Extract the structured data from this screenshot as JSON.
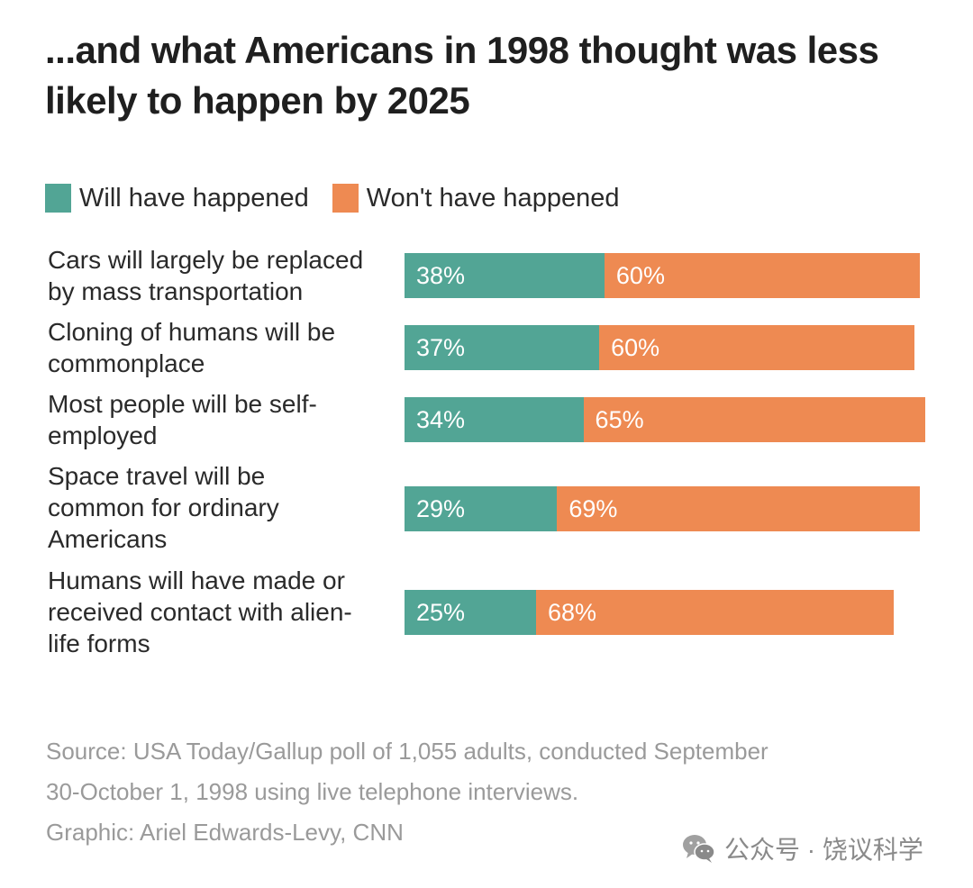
{
  "chart_data": {
    "type": "bar",
    "orientation": "horizontal",
    "stacked": true,
    "title": "...and what Americans in 1998 thought was less likely to happen by 2025",
    "xlabel": "",
    "ylabel": "",
    "xlim": [
      0,
      100
    ],
    "grid": false,
    "legend_position": "top-left",
    "categories": [
      "Cars will largely be replaced by mass transportation",
      "Cloning of humans will be commonplace",
      "Most people will be self-employed",
      "Space travel will be common for ordinary Americans",
      "Humans will have made or received contact with alien-life forms"
    ],
    "category_lines": [
      [
        "Cars will largely be replaced",
        "by mass transportation"
      ],
      [
        "Cloning of humans will be",
        "commonplace"
      ],
      [
        "Most people will be self-",
        "employed"
      ],
      [
        "Space travel will be",
        "common for ordinary",
        "Americans"
      ],
      [
        "Humans will have made or",
        "received contact with alien-",
        "life forms"
      ]
    ],
    "series": [
      {
        "name": "Will have happened",
        "color": "#52a595",
        "values": [
          38,
          37,
          34,
          29,
          25
        ],
        "labels": [
          "38%",
          "37%",
          "34%",
          "29%",
          "25%"
        ]
      },
      {
        "name": "Won't have happened",
        "color": "#ee8a52",
        "values": [
          60,
          60,
          65,
          69,
          68
        ],
        "labels": [
          "60%",
          "60%",
          "65%",
          "69%",
          "68%"
        ]
      }
    ],
    "source_lines": [
      "Source: USA Today/Gallup poll of 1,055 adults, conducted September",
      "30-October 1, 1998 using live telephone interviews.",
      "Graphic: Ariel Edwards-Levy, CNN"
    ]
  },
  "watermark": {
    "icon": "wechat-icon",
    "text": "公众号 · 饶议科学"
  }
}
